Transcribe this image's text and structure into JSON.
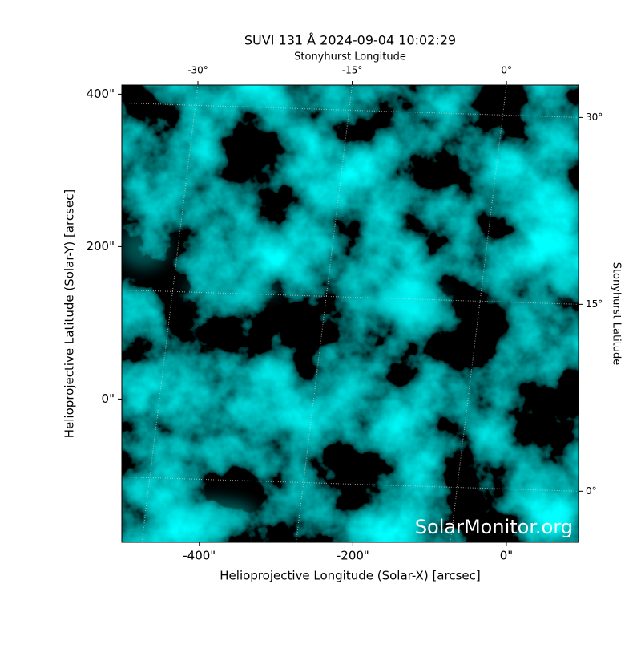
{
  "chart_data": {
    "type": "image",
    "title": "SUVI 131 Å 2024-09-04 10:02:29",
    "xlabel": "Helioprojective Longitude (Solar-X) [arcsec]",
    "ylabel": "Helioprojective Latitude (Solar-Y) [arcsec]",
    "x2label": "Stonyhurst Longitude",
    "y2label": "Stonyhurst Latitude",
    "watermark": "SolarMonitor.org",
    "color": "#00e5e5",
    "xlim": [
      -501,
      94
    ],
    "ylim": [
      -188,
      412
    ],
    "xticks": [
      {
        "value": -400,
        "label": "-400\""
      },
      {
        "value": -200,
        "label": "-200\""
      },
      {
        "value": 0,
        "label": "0\""
      }
    ],
    "yticks": [
      {
        "value": 0,
        "label": "0\""
      },
      {
        "value": 200,
        "label": "200\""
      },
      {
        "value": 400,
        "label": "400\""
      }
    ],
    "x2lim": [
      -37.4,
      7
    ],
    "x2ticks": [
      {
        "value": -30,
        "label": "-30°"
      },
      {
        "value": -15,
        "label": "-15°"
      },
      {
        "value": 0,
        "label": "0°"
      }
    ],
    "y2lim": [
      -4.1,
      32.6
    ],
    "y2ticks": [
      {
        "value": 0,
        "label": "0°"
      },
      {
        "value": 15,
        "label": "15°"
      },
      {
        "value": 30,
        "label": "30°"
      }
    ],
    "grid": true
  }
}
